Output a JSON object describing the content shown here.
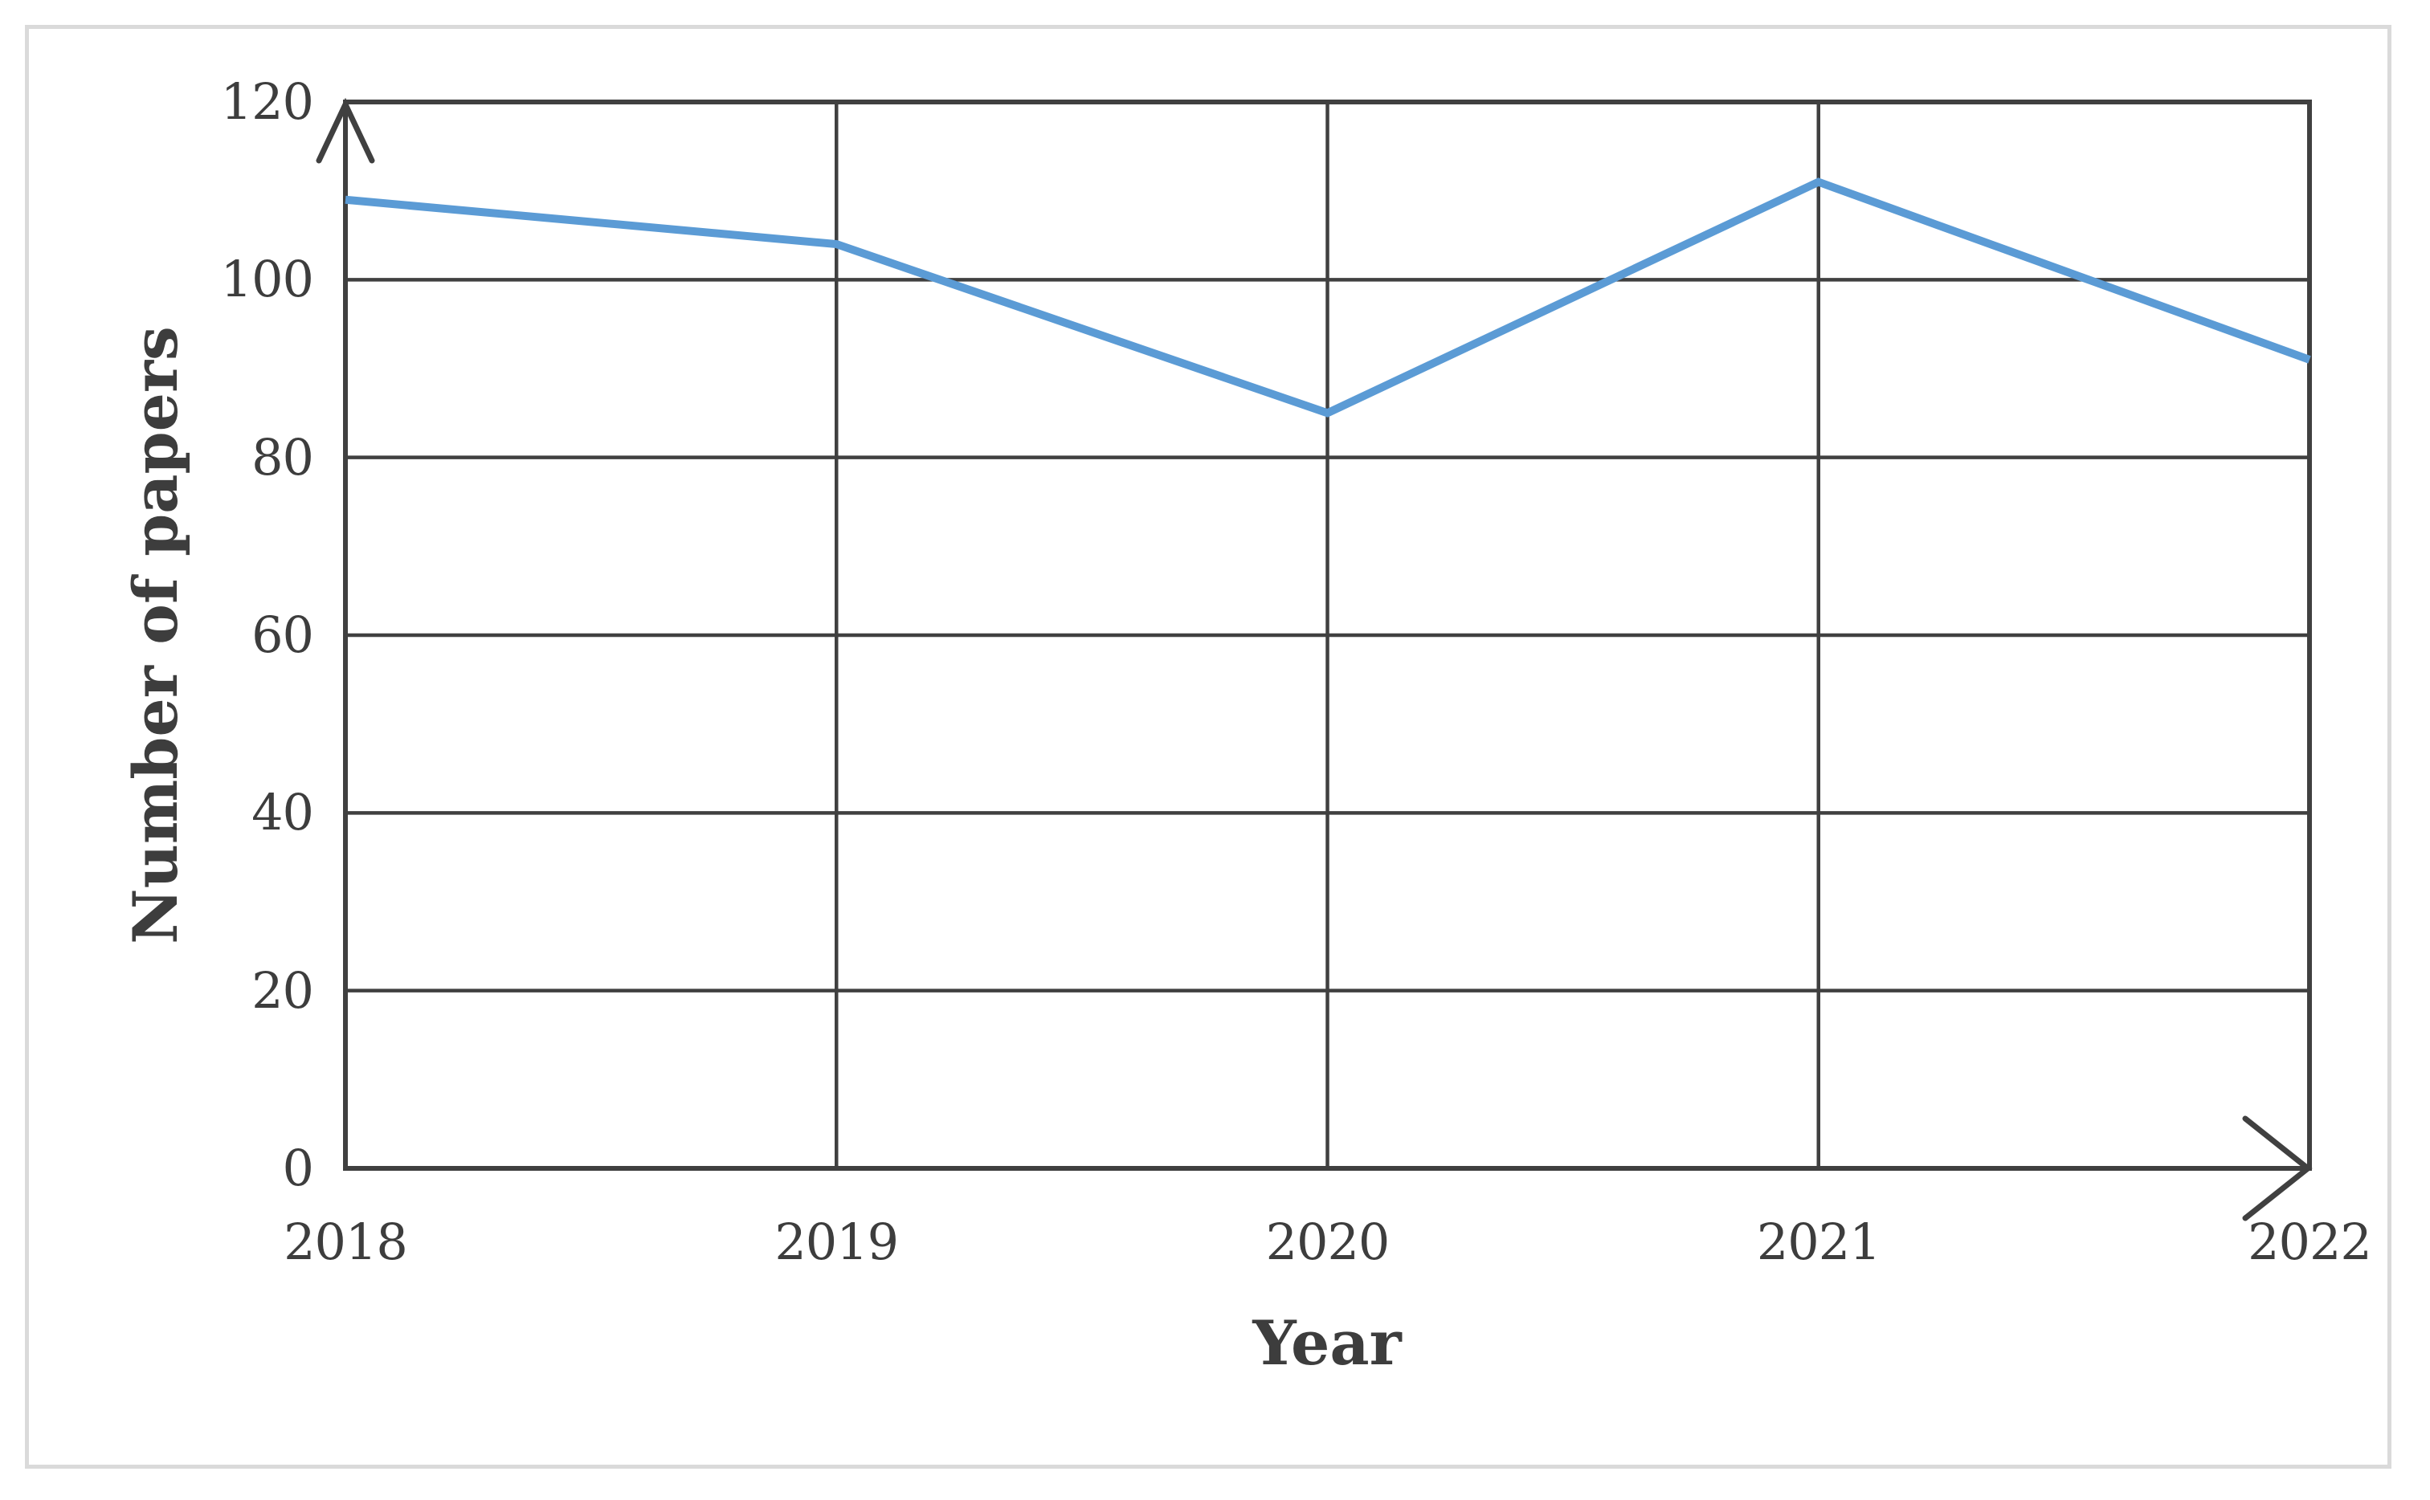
{
  "chart_data": {
    "type": "line",
    "categories": [
      "2018",
      "2019",
      "2020",
      "2021",
      "2022"
    ],
    "series": [
      {
        "name": "Number of papers",
        "values": [
          109,
          104,
          85,
          111,
          91
        ]
      }
    ],
    "title": "",
    "xlabel": "Year",
    "ylabel": "Number of papers",
    "ylim": [
      0,
      120
    ],
    "yticks": [
      0,
      20,
      40,
      60,
      80,
      100,
      120
    ],
    "grid": true,
    "legend_position": "none",
    "axis_arrows": true,
    "colors": {
      "line": "#5B9BD5",
      "axis": "#404040",
      "grid": "#404040",
      "text": "#3d3d3d",
      "frame_border": "#dadada",
      "background": "#ffffff"
    }
  }
}
